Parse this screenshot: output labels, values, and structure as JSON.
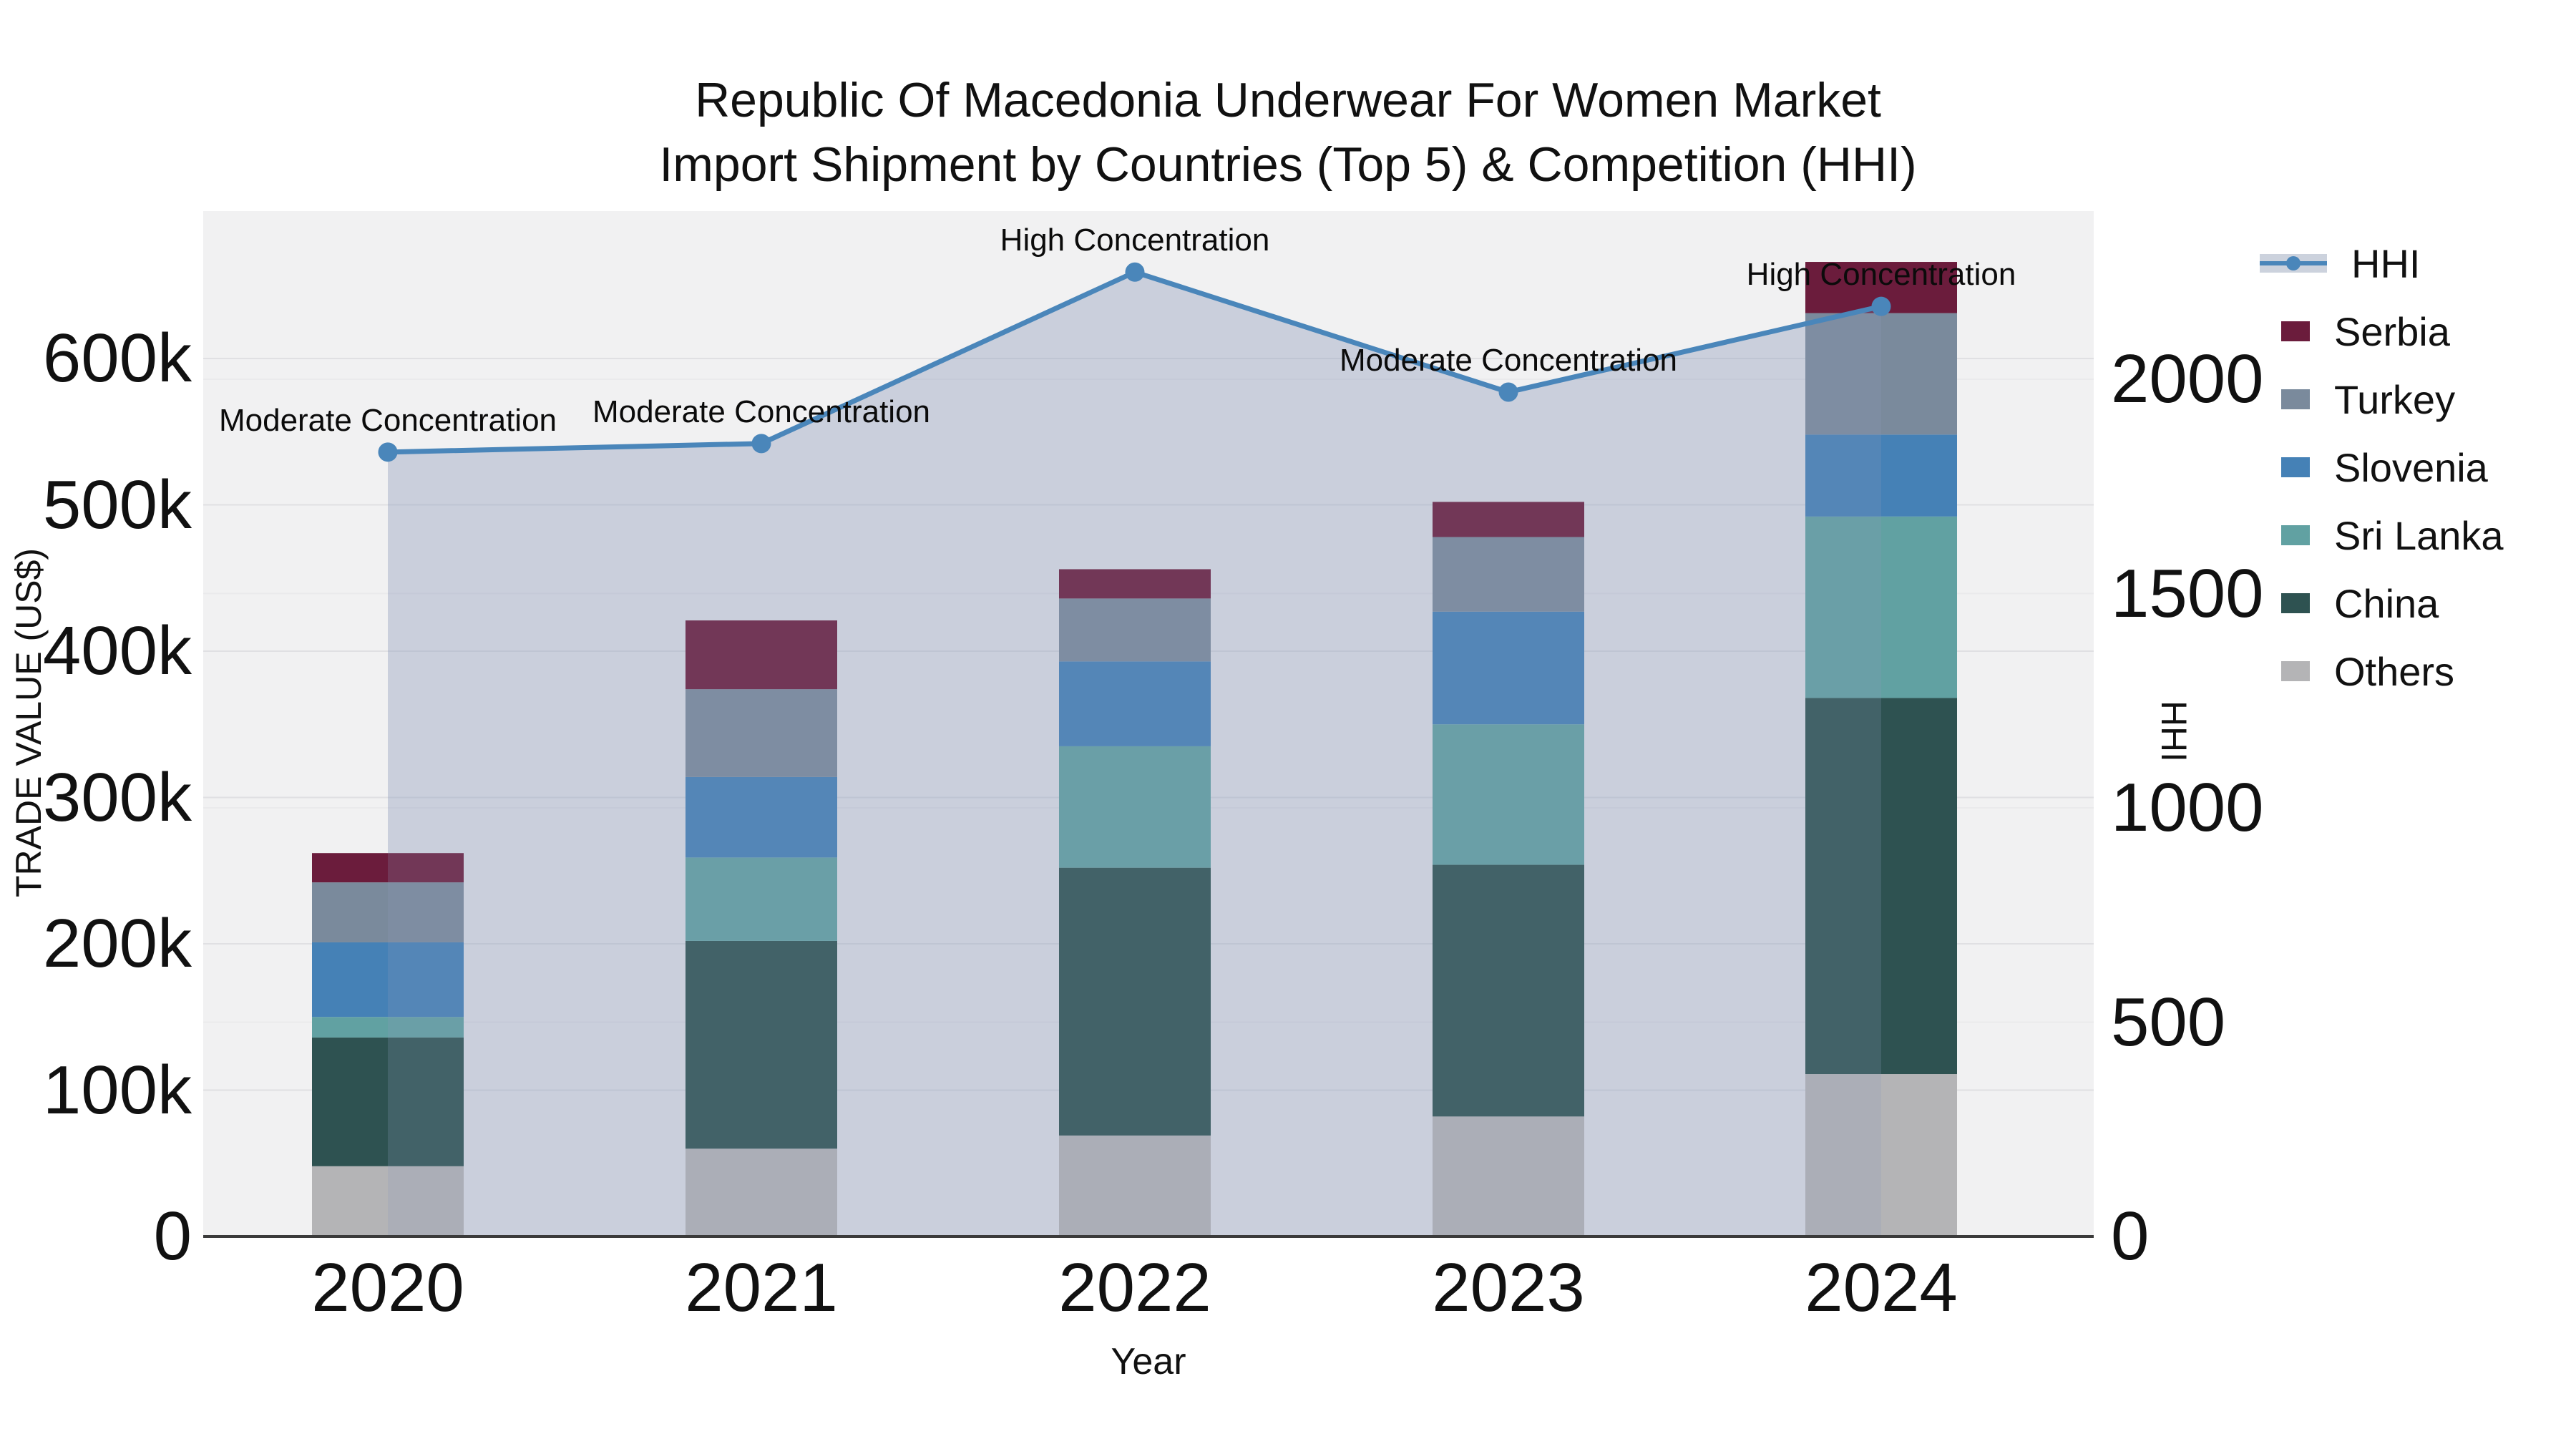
{
  "title": {
    "line1": "Republic Of Macedonia Underwear For Women Market",
    "line2": "Import Shipment by Countries (Top 5) & Competition (HHI)"
  },
  "axes": {
    "x": {
      "title": "Year",
      "categories": [
        "2020",
        "2021",
        "2022",
        "2023",
        "2024"
      ]
    },
    "y_left": {
      "title": "TRADE VALUE (US$)",
      "tick_labels": [
        "0",
        "100k",
        "200k",
        "300k",
        "400k",
        "500k",
        "600k"
      ],
      "tick_values_k": [
        0,
        100,
        200,
        300,
        400,
        500,
        600
      ]
    },
    "y_right": {
      "title": "HHI",
      "tick_labels": [
        "0",
        "500",
        "1000",
        "1500",
        "2000"
      ],
      "tick_values": [
        0,
        500,
        1000,
        1500,
        2000
      ]
    }
  },
  "legend": {
    "items": [
      {
        "label": "HHI",
        "type": "line",
        "color": "#4a86ba"
      },
      {
        "label": "Serbia",
        "type": "swatch",
        "color": "#6b1c3c"
      },
      {
        "label": "Turkey",
        "type": "swatch",
        "color": "#7a8a9c"
      },
      {
        "label": "Slovenia",
        "type": "swatch",
        "color": "#4581b6"
      },
      {
        "label": "Sri Lanka",
        "type": "swatch",
        "color": "#61a1a2"
      },
      {
        "label": "China",
        "type": "swatch",
        "color": "#2e5251"
      },
      {
        "label": "Others",
        "type": "swatch",
        "color": "#b4b4b6"
      }
    ]
  },
  "chart_data": {
    "type": "bar+line",
    "categories": [
      "2020",
      "2021",
      "2022",
      "2023",
      "2024"
    ],
    "unit": "US$ thousands",
    "stack_order_bottom_to_top": [
      "Others",
      "China",
      "Sri Lanka",
      "Slovenia",
      "Turkey",
      "Serbia"
    ],
    "series": [
      {
        "name": "Serbia",
        "color": "#6b1c3c",
        "values_k": [
          20,
          47,
          20,
          24,
          35
        ]
      },
      {
        "name": "Turkey",
        "color": "#7a8a9c",
        "values_k": [
          41,
          60,
          43,
          51,
          83
        ]
      },
      {
        "name": "Slovenia",
        "color": "#4581b6",
        "values_k": [
          51,
          55,
          58,
          77,
          56
        ]
      },
      {
        "name": "Sri Lanka",
        "color": "#61a1a2",
        "values_k": [
          14,
          57,
          83,
          96,
          124
        ]
      },
      {
        "name": "China",
        "color": "#2e5251",
        "values_k": [
          88,
          142,
          183,
          172,
          257
        ]
      },
      {
        "name": "Others",
        "color": "#b4b4b6",
        "values_k": [
          48,
          60,
          69,
          82,
          111
        ]
      }
    ],
    "totals_k": [
      262,
      421,
      456,
      502,
      666
    ],
    "hhi": {
      "name": "HHI",
      "color": "#4a86ba",
      "fill_color_rgb": [
        140,
        155,
        185
      ],
      "values": [
        1830,
        1850,
        2250,
        1970,
        2170
      ],
      "annotations": [
        "Moderate Concentration",
        "Moderate Concentration",
        "High Concentration",
        "Moderate Concentration",
        "High Concentration"
      ]
    },
    "ylim_left_k": [
      0,
      700
    ],
    "ylim_right": [
      0,
      2392
    ],
    "grid": true,
    "legend_position": "right",
    "plot_background": "#f1f1f2"
  }
}
